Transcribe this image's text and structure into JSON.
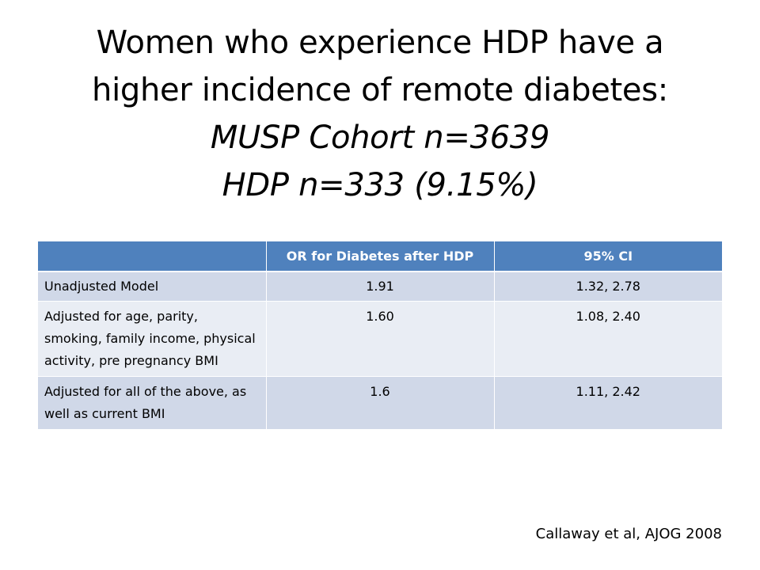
{
  "title": {
    "line1": "Women who experience HDP have a",
    "line2": "higher incidence of remote diabetes:",
    "line3": "MUSP Cohort n=3639",
    "line4": "HDP n=333 (9.15%)"
  },
  "table": {
    "headers": [
      "",
      "OR for Diabetes after HDP",
      "95% CI"
    ],
    "rows": [
      [
        "Unadjusted Model",
        "1.91",
        "1.32, 2.78"
      ],
      [
        "Adjusted for age, parity, smoking, family income, physical activity, pre pregnancy BMI",
        "1.60",
        "1.08, 2.40"
      ],
      [
        "Adjusted for all of the above, as well as current BMI",
        "1.6",
        "1.11, 2.42"
      ]
    ]
  },
  "citation": "Callaway et al, AJOG 2008",
  "colors": {
    "header_bg": "#4f81bd",
    "row_dark": "#d0d8e8",
    "row_light": "#e9edf4"
  }
}
